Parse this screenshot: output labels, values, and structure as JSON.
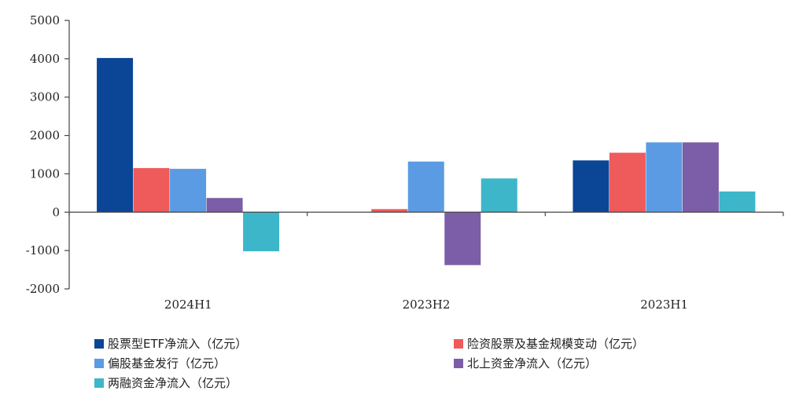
{
  "chart_data": {
    "type": "bar",
    "categories": [
      "2024H1",
      "2023H2",
      "2023H1"
    ],
    "ylim": [
      -2000,
      5000
    ],
    "yticks": [
      -2000,
      -1000,
      0,
      1000,
      2000,
      3000,
      4000,
      5000
    ],
    "ytick_labels": [
      "-2000",
      "-1000",
      "0",
      "1000",
      "2000",
      "3000",
      "4000",
      "5000"
    ],
    "grid": false,
    "legend_position": "bottom",
    "series": [
      {
        "name": "股票型ETF净流入（亿元）",
        "color": "#0b4596",
        "values": [
          4020,
          0,
          1350
        ]
      },
      {
        "name": "险资股票及基金规模变动（亿元）",
        "color": "#ef5a5b",
        "values": [
          1150,
          80,
          1550
        ]
      },
      {
        "name": "偏股基金发行（亿元）",
        "color": "#5b9be3",
        "values": [
          1130,
          1320,
          1820
        ]
      },
      {
        "name": "北上资金净流入（亿元）",
        "color": "#7b5ea7",
        "values": [
          370,
          -1380,
          1820
        ]
      },
      {
        "name": "两融资金净流入（亿元）",
        "color": "#3db6c9",
        "values": [
          -1020,
          880,
          540
        ]
      }
    ]
  }
}
